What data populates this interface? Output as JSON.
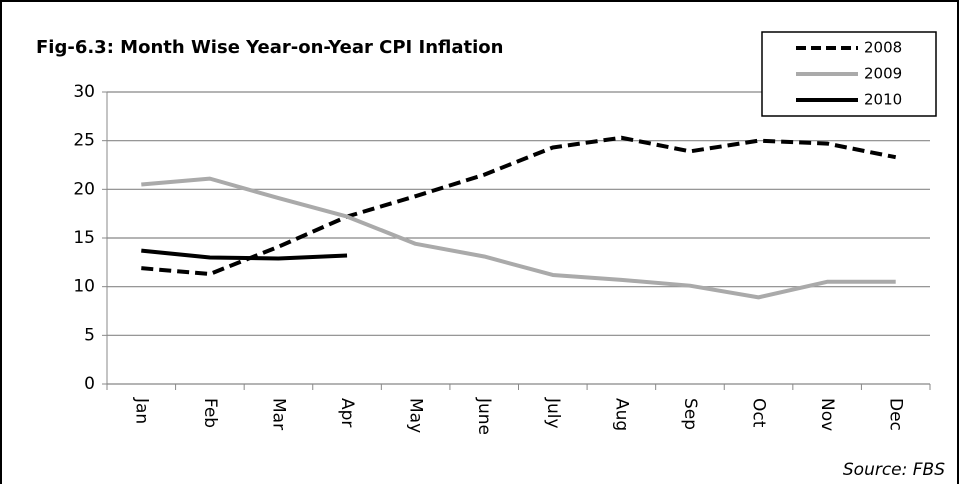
{
  "chart_data": {
    "type": "line",
    "title": "Fig-6.3: Month Wise Year-on-Year CPI Inflation",
    "source": "Source: FBS",
    "categories": [
      "Jan",
      "Feb",
      "Mar",
      "Apr",
      "May",
      "June",
      "July",
      "Aug",
      "Sep",
      "Oct",
      "Nov",
      "Dec"
    ],
    "series": [
      {
        "name": "2008",
        "color": "#000000",
        "line_style": "dashed",
        "values": [
          11.9,
          11.3,
          14.1,
          17.2,
          19.3,
          21.5,
          24.3,
          25.3,
          23.9,
          25.0,
          24.7,
          23.3
        ]
      },
      {
        "name": "2009",
        "color": "#aaaaaa",
        "line_style": "solid",
        "values": [
          20.5,
          21.1,
          19.1,
          17.2,
          14.4,
          13.1,
          11.2,
          10.7,
          10.1,
          8.9,
          10.5,
          10.5
        ]
      },
      {
        "name": "2010",
        "color": "#000000",
        "line_style": "solid",
        "values": [
          13.7,
          13.0,
          12.9,
          13.2,
          null,
          null,
          null,
          null,
          null,
          null,
          null,
          null
        ]
      }
    ],
    "ylim": [
      0,
      30
    ],
    "yticks": [
      0,
      5,
      10,
      15,
      20,
      25,
      30
    ],
    "grid": true,
    "legend": "top-right"
  }
}
